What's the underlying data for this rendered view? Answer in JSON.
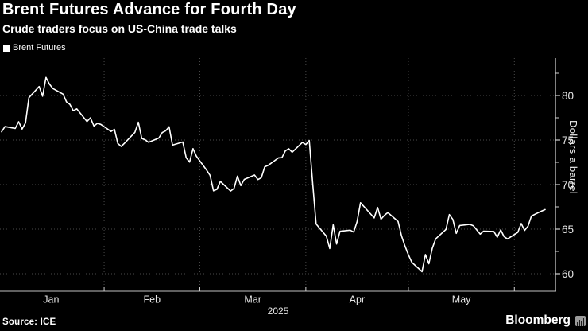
{
  "header": {
    "title": "Brent Futures Advance for Fourth Day",
    "subtitle": "Crude traders focus on US-China trade talks"
  },
  "legend": {
    "label": "Brent Futures",
    "swatch_color": "#ffffff"
  },
  "footer": {
    "source": "Source: ICE",
    "brand": "Bloomberg"
  },
  "colors": {
    "background": "#000000",
    "line": "#ffffff",
    "grid": "#4a4a4a",
    "axis_x": "#9a9a9a",
    "axis_y": "#d8d8d8",
    "tick": "#cfcfcf",
    "tick_label": "#e6e6e6",
    "text": "#ffffff"
  },
  "chart_data": {
    "type": "line",
    "title": "Brent Futures Advance for Fourth Day",
    "subtitle": "Crude traders focus on US-China trade talks",
    "series_name": "Brent Futures",
    "xlabel": "",
    "ylabel": "Dollars a barrel",
    "year_label": "2025",
    "ylim": [
      57.5,
      84.5
    ],
    "y_ticks": [
      60,
      65,
      70,
      75,
      80
    ],
    "y_minor_ticks": [
      62.5,
      67.5,
      72.5,
      77.5,
      82.5
    ],
    "x_tick_labels": [
      "Jan",
      "Feb",
      "Mar",
      "Apr",
      "May"
    ],
    "grid": "dotted; horizontal at y_ticks, vertical at month starts",
    "legend_position": "top-left",
    "points": [
      [
        "01-02",
        75.93
      ],
      [
        "01-03",
        76.51
      ],
      [
        "01-06",
        76.3
      ],
      [
        "01-07",
        77.05
      ],
      [
        "01-08",
        76.23
      ],
      [
        "01-09",
        76.92
      ],
      [
        "01-10",
        79.76
      ],
      [
        "01-13",
        81.01
      ],
      [
        "01-14",
        79.92
      ],
      [
        "01-15",
        82.03
      ],
      [
        "01-16",
        81.29
      ],
      [
        "01-17",
        80.79
      ],
      [
        "01-20",
        80.15
      ],
      [
        "01-21",
        79.29
      ],
      [
        "01-22",
        79.0
      ],
      [
        "01-23",
        78.29
      ],
      [
        "01-24",
        78.5
      ],
      [
        "01-27",
        77.08
      ],
      [
        "01-28",
        77.49
      ],
      [
        "01-29",
        76.58
      ],
      [
        "01-30",
        76.87
      ],
      [
        "01-31",
        76.76
      ],
      [
        "02-03",
        75.96
      ],
      [
        "02-04",
        76.2
      ],
      [
        "02-05",
        74.61
      ],
      [
        "02-06",
        74.29
      ],
      [
        "02-07",
        74.66
      ],
      [
        "02-10",
        75.87
      ],
      [
        "02-11",
        77.0
      ],
      [
        "02-12",
        75.18
      ],
      [
        "02-13",
        75.02
      ],
      [
        "02-14",
        74.74
      ],
      [
        "02-17",
        75.22
      ],
      [
        "02-18",
        75.84
      ],
      [
        "02-19",
        76.04
      ],
      [
        "02-20",
        76.48
      ],
      [
        "02-21",
        74.43
      ],
      [
        "02-24",
        74.78
      ],
      [
        "02-25",
        73.02
      ],
      [
        "02-26",
        72.53
      ],
      [
        "02-27",
        74.04
      ],
      [
        "02-28",
        73.18
      ],
      [
        "03-03",
        71.62
      ],
      [
        "03-04",
        71.04
      ],
      [
        "03-05",
        69.3
      ],
      [
        "03-06",
        69.46
      ],
      [
        "03-07",
        70.36
      ],
      [
        "03-10",
        69.28
      ],
      [
        "03-11",
        69.56
      ],
      [
        "03-12",
        70.95
      ],
      [
        "03-13",
        69.88
      ],
      [
        "03-14",
        70.58
      ],
      [
        "03-17",
        71.07
      ],
      [
        "03-18",
        70.56
      ],
      [
        "03-19",
        70.78
      ],
      [
        "03-20",
        72.0
      ],
      [
        "03-21",
        72.16
      ],
      [
        "03-24",
        73.0
      ],
      [
        "03-25",
        73.02
      ],
      [
        "03-26",
        73.79
      ],
      [
        "03-27",
        74.03
      ],
      [
        "03-28",
        73.63
      ],
      [
        "03-31",
        74.74
      ],
      [
        "04-01",
        74.49
      ],
      [
        "04-02",
        74.95
      ],
      [
        "04-03",
        70.14
      ],
      [
        "04-04",
        65.58
      ],
      [
        "04-07",
        64.21
      ],
      [
        "04-08",
        62.82
      ],
      [
        "04-09",
        65.48
      ],
      [
        "04-10",
        63.33
      ],
      [
        "04-11",
        64.76
      ],
      [
        "04-14",
        64.88
      ],
      [
        "04-15",
        64.67
      ],
      [
        "04-16",
        65.85
      ],
      [
        "04-17",
        67.96
      ],
      [
        "04-21",
        66.26
      ],
      [
        "04-22",
        67.44
      ],
      [
        "04-23",
        66.12
      ],
      [
        "04-24",
        66.55
      ],
      [
        "04-25",
        66.87
      ],
      [
        "04-28",
        65.86
      ],
      [
        "04-29",
        64.25
      ],
      [
        "04-30",
        63.12
      ],
      [
        "05-01",
        62.13
      ],
      [
        "05-02",
        61.29
      ],
      [
        "05-05",
        60.23
      ],
      [
        "05-06",
        62.15
      ],
      [
        "05-07",
        61.12
      ],
      [
        "05-08",
        62.84
      ],
      [
        "05-09",
        63.91
      ],
      [
        "05-12",
        64.96
      ],
      [
        "05-13",
        66.63
      ],
      [
        "05-14",
        66.09
      ],
      [
        "05-15",
        64.53
      ],
      [
        "05-16",
        65.41
      ],
      [
        "05-19",
        65.54
      ],
      [
        "05-20",
        65.38
      ],
      [
        "05-21",
        64.91
      ],
      [
        "05-22",
        64.44
      ],
      [
        "05-23",
        64.78
      ],
      [
        "05-26",
        64.74
      ],
      [
        "05-27",
        64.09
      ],
      [
        "05-28",
        64.92
      ],
      [
        "05-29",
        64.15
      ],
      [
        "05-30",
        63.9
      ],
      [
        "06-02",
        64.63
      ],
      [
        "06-03",
        65.63
      ],
      [
        "06-04",
        64.86
      ],
      [
        "06-05",
        65.34
      ],
      [
        "06-06",
        66.47
      ],
      [
        "06-09",
        67.04
      ],
      [
        "06-10",
        67.2
      ]
    ]
  }
}
